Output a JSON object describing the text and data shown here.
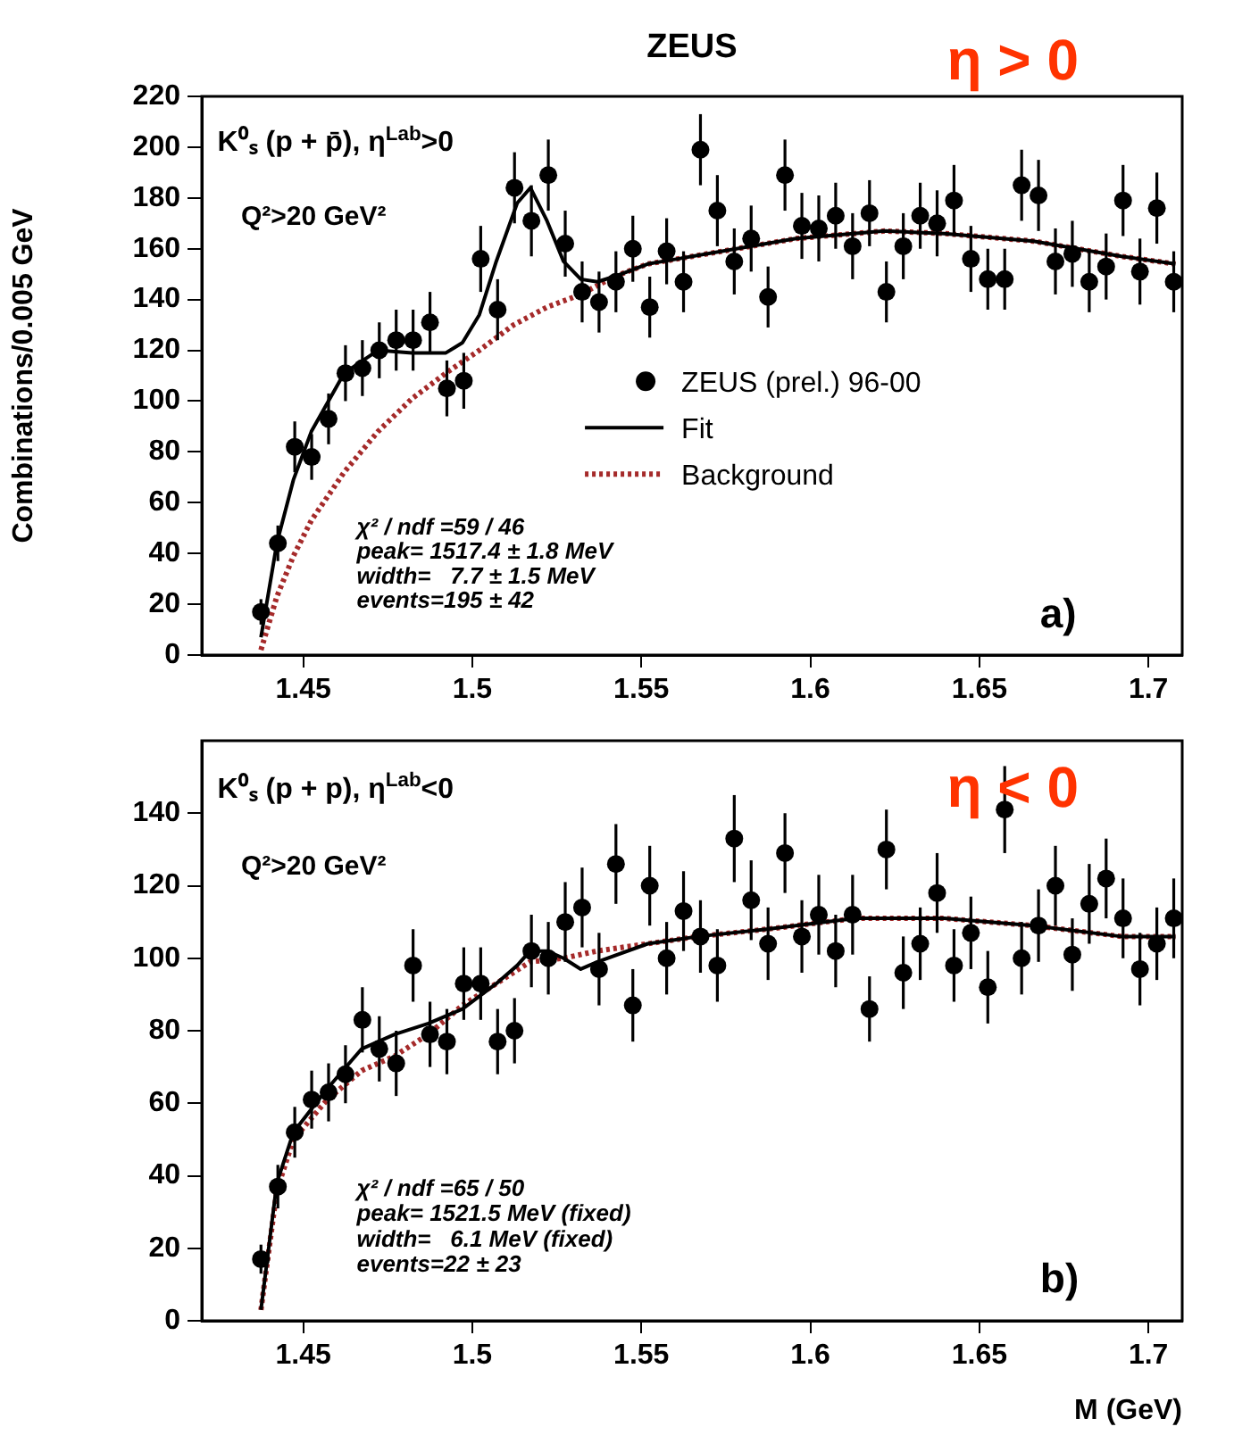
{
  "chart_data": [
    {
      "type": "scatter",
      "title": "ZEUS",
      "ylabel": "Combinations/0.005 GeV",
      "xlim": [
        1.42,
        1.71
      ],
      "xticks": [
        1.45,
        1.5,
        1.55,
        1.6,
        1.65,
        1.7
      ],
      "ylim": [
        0,
        220
      ],
      "yticks": [
        0,
        20,
        40,
        60,
        80,
        100,
        120,
        140,
        160,
        180,
        200,
        220
      ],
      "grid": false,
      "legend": "right",
      "annotations": [
        "η > 0",
        "K⁰ₛ (p + p̄), η$^{Lab}$>0",
        "Q²>20 GeV²",
        "χ² / ndf =59 / 46",
        "peak= 1517.4 ± 1.8 MeV",
        "width=   7.7 ± 1.5 MeV",
        "events=195 ± 42",
        "a)"
      ],
      "series": [
        {
          "name": "ZEUS (prel.) 96-00",
          "type": "scatter",
          "marker": "circle",
          "color": "#000000",
          "x": [
            1.4375,
            1.4425,
            1.4475,
            1.4525,
            1.4575,
            1.4625,
            1.4675,
            1.4725,
            1.4775,
            1.4825,
            1.4875,
            1.4925,
            1.4975,
            1.5025,
            1.5075,
            1.5125,
            1.5175,
            1.5225,
            1.5275,
            1.5325,
            1.5375,
            1.5425,
            1.5475,
            1.5525,
            1.5575,
            1.5625,
            1.5675,
            1.5725,
            1.5775,
            1.5825,
            1.5875,
            1.5925,
            1.5975,
            1.6025,
            1.6075,
            1.6125,
            1.6175,
            1.6225,
            1.6275,
            1.6325,
            1.6375,
            1.6425,
            1.6475,
            1.6525,
            1.6575,
            1.6625,
            1.6675,
            1.6725,
            1.6775,
            1.6825,
            1.6875,
            1.6925,
            1.6975,
            1.7025,
            1.7075
          ],
          "values": [
            17,
            44,
            82,
            78,
            93,
            111,
            113,
            120,
            124,
            124,
            131,
            105,
            108,
            156,
            136,
            184,
            171,
            189,
            162,
            143,
            139,
            147,
            160,
            137,
            159,
            147,
            199,
            175,
            155,
            164,
            141,
            189,
            169,
            168,
            173,
            161,
            174,
            143,
            161,
            173,
            170,
            179,
            156,
            148,
            148,
            185,
            181,
            155,
            158,
            147,
            153,
            179,
            151,
            176,
            147
          ],
          "errors": [
            5,
            7,
            10,
            9,
            10,
            11,
            11,
            11,
            12,
            12,
            12,
            11,
            11,
            13,
            12,
            14,
            14,
            14,
            13,
            12,
            12,
            12,
            13,
            12,
            13,
            12,
            14,
            14,
            13,
            13,
            12,
            14,
            13,
            13,
            13,
            13,
            13,
            12,
            13,
            13,
            13,
            14,
            13,
            12,
            12,
            14,
            14,
            13,
            13,
            12,
            13,
            14,
            13,
            14,
            12
          ]
        },
        {
          "name": "Fit",
          "type": "line",
          "marker": "none",
          "line_style": "solid",
          "color": "#000000",
          "x": [
            1.4375,
            1.4422,
            1.4471,
            1.4524,
            1.4621,
            1.4721,
            1.4822,
            1.4922,
            1.4971,
            1.5021,
            1.5071,
            1.5133,
            1.5172,
            1.5221,
            1.527,
            1.5321,
            1.537,
            1.5419,
            1.5519,
            1.5607,
            1.5958,
            1.622,
            1.6396,
            1.666,
            1.692,
            1.708
          ],
          "values": [
            7,
            44,
            69,
            88,
            111,
            120,
            119,
            119,
            123,
            134,
            155,
            178,
            184,
            171,
            155,
            148,
            147,
            149,
            154,
            156,
            164,
            167,
            166,
            163,
            157,
            154
          ]
        },
        {
          "name": "Background",
          "type": "line",
          "marker": "none",
          "line_style": "dotted",
          "color": "#a52a2a",
          "x": [
            1.4375,
            1.4422,
            1.4471,
            1.4524,
            1.4621,
            1.4721,
            1.4822,
            1.4922,
            1.5021,
            1.5122,
            1.5221,
            1.5321,
            1.5419,
            1.5519,
            1.5607,
            1.5958,
            1.622,
            1.6396,
            1.666,
            1.692,
            1.708
          ],
          "values": [
            2,
            23,
            39,
            53,
            72,
            88,
            101,
            111,
            120,
            130,
            137,
            142,
            149,
            154,
            156,
            164,
            167,
            166,
            163,
            157,
            154
          ]
        }
      ]
    },
    {
      "type": "scatter",
      "xlabel": "M (GeV)",
      "xlim": [
        1.42,
        1.71
      ],
      "xticks": [
        1.45,
        1.5,
        1.55,
        1.6,
        1.65,
        1.7
      ],
      "ylim": [
        0,
        160
      ],
      "yticks": [
        0,
        20,
        40,
        60,
        80,
        100,
        120,
        140
      ],
      "grid": false,
      "annotations": [
        "η < 0",
        "K⁰ₛ (p + p), η$^{Lab}$<0",
        "Q²>20 GeV²",
        "χ² / ndf =65 / 50",
        "peak= 1521.5 MeV (fixed)",
        "width=   6.1 MeV (fixed)",
        "events=22 ± 23",
        "b)"
      ],
      "series": [
        {
          "type": "scatter",
          "marker": "circle",
          "color": "#000000",
          "x": [
            1.4375,
            1.4425,
            1.4475,
            1.4525,
            1.4575,
            1.4625,
            1.4675,
            1.4725,
            1.4775,
            1.4825,
            1.4875,
            1.4925,
            1.4975,
            1.5025,
            1.5075,
            1.5125,
            1.5175,
            1.5225,
            1.5275,
            1.5325,
            1.5375,
            1.5425,
            1.5475,
            1.5525,
            1.5575,
            1.5625,
            1.5675,
            1.5725,
            1.5775,
            1.5825,
            1.5875,
            1.5925,
            1.5975,
            1.6025,
            1.6075,
            1.6125,
            1.6175,
            1.6225,
            1.6275,
            1.6325,
            1.6375,
            1.6425,
            1.6475,
            1.6525,
            1.6575,
            1.6625,
            1.6675,
            1.6725,
            1.6775,
            1.6825,
            1.6875,
            1.6925,
            1.6975,
            1.7025,
            1.7075
          ],
          "values": [
            17,
            37,
            52,
            61,
            63,
            68,
            83,
            75,
            71,
            98,
            79,
            77,
            93,
            93,
            77,
            80,
            102,
            100,
            110,
            114,
            97,
            126,
            87,
            120,
            100,
            113,
            106,
            98,
            133,
            116,
            104,
            129,
            106,
            112,
            102,
            112,
            86,
            130,
            96,
            104,
            118,
            98,
            107,
            92,
            141,
            100,
            109,
            120,
            101,
            115,
            122,
            111,
            97,
            104,
            111
          ],
          "errors": [
            4,
            6,
            7,
            8,
            8,
            8,
            9,
            9,
            9,
            10,
            9,
            9,
            10,
            10,
            9,
            9,
            10,
            10,
            11,
            11,
            10,
            11,
            10,
            11,
            10,
            11,
            10,
            10,
            12,
            11,
            10,
            11,
            10,
            11,
            10,
            11,
            9,
            11,
            10,
            10,
            11,
            10,
            10,
            10,
            12,
            10,
            10,
            11,
            10,
            11,
            11,
            11,
            10,
            10,
            11
          ]
        },
        {
          "type": "line",
          "marker": "none",
          "line_style": "solid",
          "color": "#000000",
          "x": [
            1.4375,
            1.4422,
            1.4471,
            1.4571,
            1.4673,
            1.477,
            1.487,
            1.4971,
            1.5071,
            1.5133,
            1.5171,
            1.5221,
            1.527,
            1.5321,
            1.537,
            1.5519,
            1.5668,
            1.587,
            1.6134,
            1.6396,
            1.666,
            1.692,
            1.708
          ],
          "values": [
            3,
            38,
            52,
            64,
            75,
            79,
            82,
            86,
            93,
            98,
            102,
            102,
            100,
            97,
            99,
            104,
            106,
            108,
            111,
            111,
            109,
            106,
            106
          ]
        },
        {
          "type": "line",
          "marker": "none",
          "line_style": "dotted",
          "color": "#a52a2a",
          "x": [
            1.4375,
            1.4422,
            1.4471,
            1.4571,
            1.4673,
            1.477,
            1.487,
            1.4971,
            1.5071,
            1.5171,
            1.527,
            1.537,
            1.5519,
            1.5668,
            1.587,
            1.6134,
            1.6396,
            1.666,
            1.692,
            1.708
          ],
          "values": [
            3,
            36,
            50,
            61,
            69,
            73,
            79,
            87,
            93,
            99,
            100,
            102,
            104,
            106,
            108,
            111,
            111,
            109,
            106,
            106
          ]
        }
      ]
    }
  ]
}
